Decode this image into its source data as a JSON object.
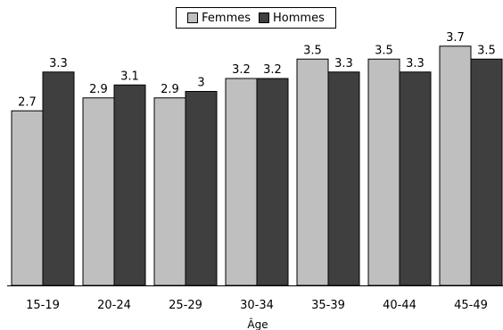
{
  "chart_data": {
    "type": "bar",
    "xlabel": "Âge",
    "ylabel": "",
    "categories": [
      "15-19",
      "20-24",
      "25-29",
      "30-34",
      "35-39",
      "40-44",
      "45-49"
    ],
    "series": [
      {
        "name": "Femmes",
        "values": [
          2.7,
          2.9,
          2.9,
          3.2,
          3.5,
          3.5,
          3.7
        ],
        "labels": [
          "2.7",
          "2.9",
          "2.9",
          "3.2",
          "3.5",
          "3.5",
          "3.7"
        ],
        "color": "#bfbfbf"
      },
      {
        "name": "Hommes",
        "values": [
          3.3,
          3.1,
          3.0,
          3.2,
          3.3,
          3.3,
          3.5
        ],
        "labels": [
          "3.3",
          "3.1",
          "3",
          "3.2",
          "3.3",
          "3.3",
          "3.5"
        ],
        "color": "#3f3f3f"
      }
    ],
    "ylim": [
      0,
      4
    ],
    "grid": false,
    "legend_position": "top-center"
  }
}
